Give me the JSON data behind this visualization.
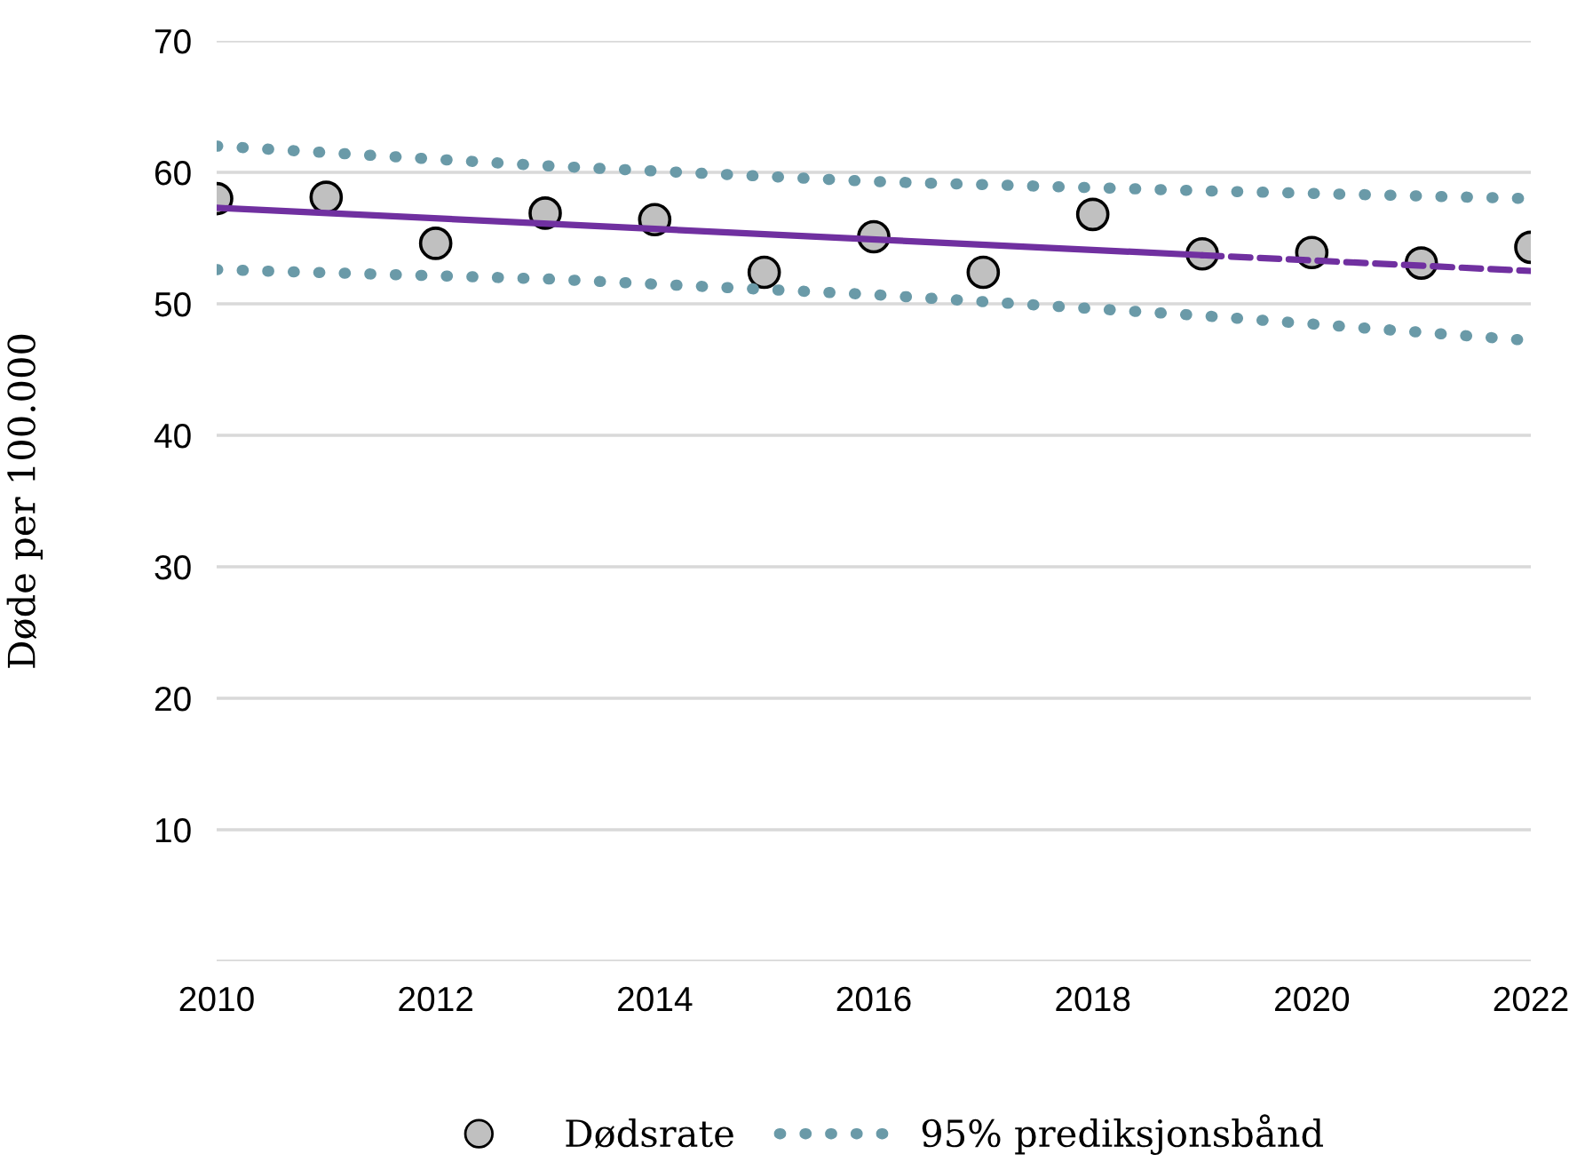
{
  "chart_data": {
    "type": "scatter",
    "ylabel": "Døde per 100.000",
    "xlim": [
      2010,
      2022
    ],
    "xticks": [
      2010,
      2012,
      2014,
      2016,
      2018,
      2020,
      2022
    ],
    "ylim": [
      0,
      70
    ],
    "yticks": [
      {
        "value": 0,
        "label": null
      },
      10,
      20,
      30,
      40,
      50,
      60,
      70
    ],
    "grid": "y",
    "legend": "bottom",
    "series": [
      {
        "name": "Dødsrate",
        "marker": "circle",
        "color": "#c0c0c0",
        "x": [
          2010,
          2011,
          2012,
          2013,
          2014,
          2015,
          2016,
          2017,
          2018,
          2019,
          2020,
          2021,
          2022
        ],
        "values": [
          58.0,
          58.1,
          54.6,
          56.9,
          56.4,
          52.4,
          55.1,
          52.4,
          56.8,
          53.8,
          53.9,
          53.1,
          54.3
        ]
      },
      {
        "type": "line",
        "line_style": "solid",
        "marker": "none",
        "color": "#7030a0",
        "x": [
          2010,
          2019
        ],
        "values": [
          57.3,
          53.7
        ]
      },
      {
        "type": "line",
        "line_style": "dashed",
        "marker": "none",
        "color": "#7030a0",
        "x": [
          2019,
          2022
        ],
        "values": [
          53.7,
          52.5
        ]
      },
      {
        "name": "95% prediksjonsbånd",
        "type": "line",
        "line_style": "dotted",
        "marker": "none",
        "color": "#6a9aa8",
        "x": [
          2010,
          2013,
          2016,
          2019,
          2022
        ],
        "values": [
          62.0,
          60.5,
          59.3,
          58.6,
          58.0
        ]
      },
      {
        "type": "line",
        "line_style": "dotted",
        "marker": "none",
        "color": "#6a9aa8",
        "x": [
          2010,
          2013,
          2016,
          2019,
          2022
        ],
        "values": [
          52.6,
          51.9,
          50.7,
          49.1,
          47.2
        ]
      }
    ]
  }
}
